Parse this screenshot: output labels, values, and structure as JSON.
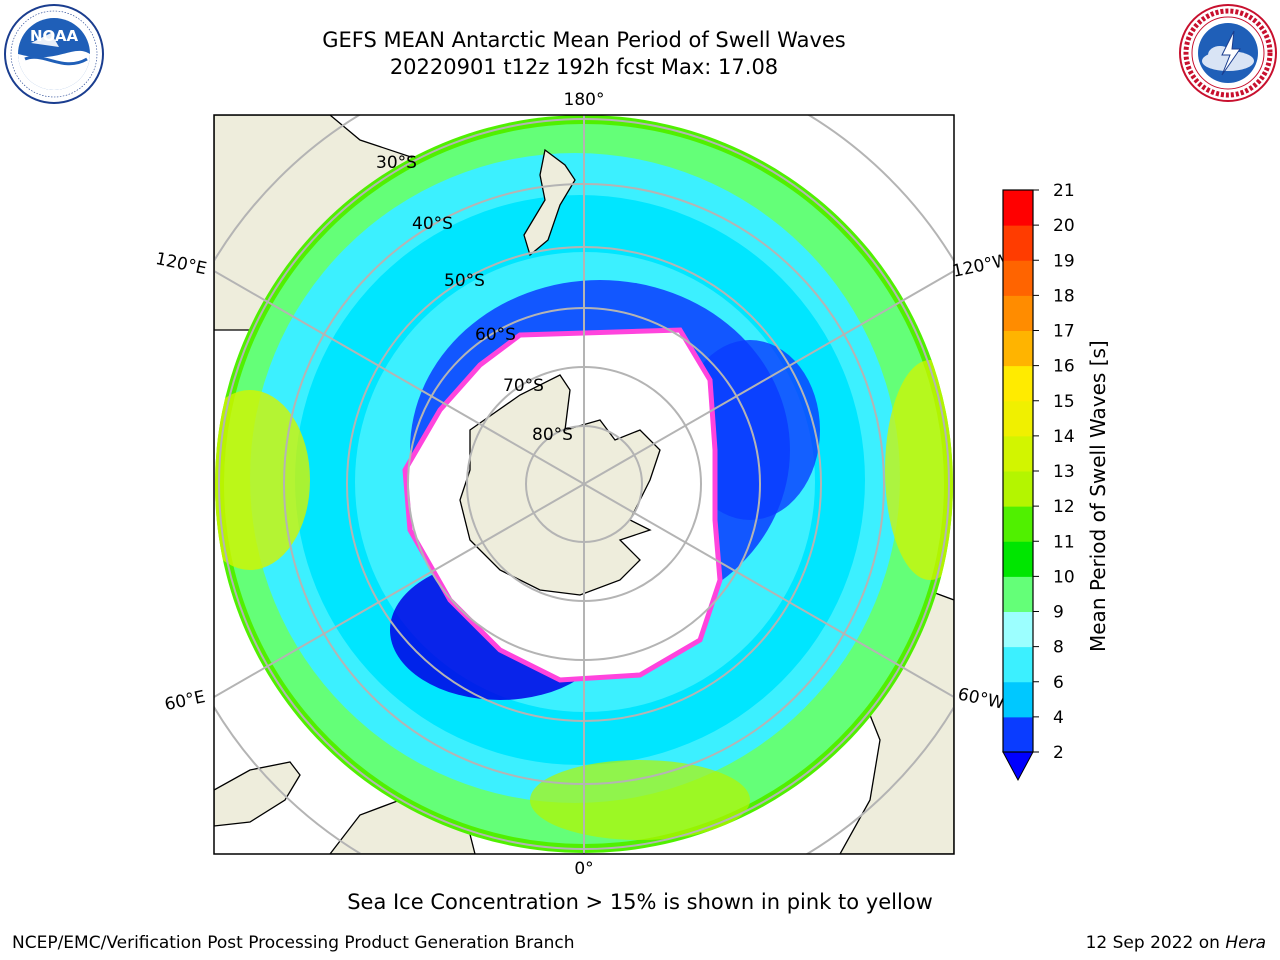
{
  "header": {
    "title_line1": "GEFS MEAN Antarctic Mean Period of Swell Waves",
    "title_line2": "20220901 t12z 192h fcst   Max: 17.08"
  },
  "logos": {
    "left": {
      "icon": "noaa-logo-icon",
      "text": "NOAA",
      "ring_text": "NATIONAL OCEANIC AND ATMOSPHERIC ADMINISTRATION · U.S. DEPARTMENT OF COMMERCE"
    },
    "right": {
      "icon": "nws-logo-icon",
      "ring_text": "NATIONAL WEATHER SERVICE"
    }
  },
  "map": {
    "projection": "south polar stereographic",
    "lon_labels": {
      "top": "180°",
      "bottom": "0°",
      "left_upper": "120°E",
      "left_lower": "60°E",
      "right_upper": "120°W",
      "right_lower": "60°W"
    },
    "lat_labels": [
      "30°S",
      "40°S",
      "50°S",
      "60°S",
      "70°S",
      "80°S"
    ],
    "colors": {
      "land": "#eeeddc",
      "grid": "#b4b4b4",
      "ice_edge": "#ff44dd",
      "ocean_missing": "#ffffff"
    }
  },
  "colorbar": {
    "label": "Mean Period of Swell Waves [s]",
    "ticks": [
      "2",
      "4",
      "6",
      "8",
      "9",
      "10",
      "11",
      "12",
      "13",
      "14",
      "15",
      "16",
      "17",
      "18",
      "19",
      "20",
      "21"
    ],
    "colors": [
      "#0a3cff",
      "#00c8ff",
      "#3cf0ff",
      "#9cffff",
      "#64ff78",
      "#00e600",
      "#50f000",
      "#b4f500",
      "#d2f500",
      "#f0f000",
      "#ffeb00",
      "#ffb400",
      "#ff8c00",
      "#ff6400",
      "#ff3c00",
      "#ff0000"
    ],
    "under_color": "#0000ff"
  },
  "caption": "Sea Ice Concentration > 15% is shown in pink to yellow",
  "footer": {
    "left": "NCEP/EMC/Verification Post Processing Product Generation Branch",
    "right_date": "12 Sep 2022 on ",
    "right_host": "Hera"
  }
}
